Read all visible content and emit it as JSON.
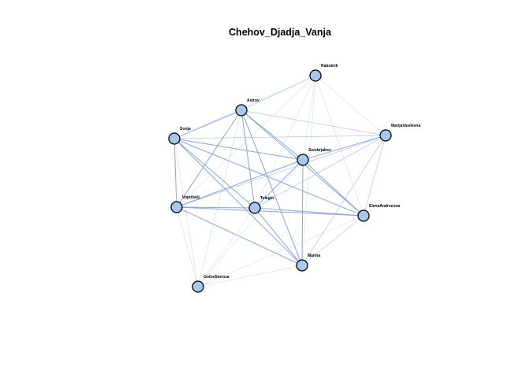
{
  "title": "Chehov_Djadja_Vanja",
  "nodes": [
    {
      "id": "rabotnik",
      "label": "Rabotnik"
    },
    {
      "id": "astrov",
      "label": "Astrov"
    },
    {
      "id": "sonja",
      "label": "Sonja"
    },
    {
      "id": "marija",
      "label": "MarijaVasilevna"
    },
    {
      "id": "serebrjakov",
      "label": "Serebrjakov"
    },
    {
      "id": "vojnitskij",
      "label": "Vojnitskij"
    },
    {
      "id": "telegin",
      "label": "Telegin"
    },
    {
      "id": "elena",
      "label": "ElenaAndreevna"
    },
    {
      "id": "marina",
      "label": "Marina"
    },
    {
      "id": "golos",
      "label": "GolosStoroza"
    }
  ],
  "edges": [
    {
      "source": "astrov",
      "target": "sonja",
      "weight": 3
    },
    {
      "source": "astrov",
      "target": "vojnitskij",
      "weight": 3
    },
    {
      "source": "astrov",
      "target": "telegin",
      "weight": 3
    },
    {
      "source": "astrov",
      "target": "serebrjakov",
      "weight": 3
    },
    {
      "source": "astrov",
      "target": "elena",
      "weight": 3
    },
    {
      "source": "astrov",
      "target": "marina",
      "weight": 3
    },
    {
      "source": "astrov",
      "target": "marija",
      "weight": 2
    },
    {
      "source": "astrov",
      "target": "rabotnik",
      "weight": 2
    },
    {
      "source": "astrov",
      "target": "golos",
      "weight": 1
    },
    {
      "source": "sonja",
      "target": "vojnitskij",
      "weight": 3
    },
    {
      "source": "sonja",
      "target": "telegin",
      "weight": 3
    },
    {
      "source": "sonja",
      "target": "serebrjakov",
      "weight": 3
    },
    {
      "source": "sonja",
      "target": "elena",
      "weight": 3
    },
    {
      "source": "sonja",
      "target": "marina",
      "weight": 3
    },
    {
      "source": "sonja",
      "target": "marija",
      "weight": 2
    },
    {
      "source": "sonja",
      "target": "rabotnik",
      "weight": 1
    },
    {
      "source": "sonja",
      "target": "golos",
      "weight": 1
    },
    {
      "source": "vojnitskij",
      "target": "telegin",
      "weight": 3
    },
    {
      "source": "vojnitskij",
      "target": "serebrjakov",
      "weight": 3
    },
    {
      "source": "vojnitskij",
      "target": "elena",
      "weight": 3
    },
    {
      "source": "vojnitskij",
      "target": "marina",
      "weight": 3
    },
    {
      "source": "vojnitskij",
      "target": "marija",
      "weight": 2
    },
    {
      "source": "vojnitskij",
      "target": "rabotnik",
      "weight": 1
    },
    {
      "source": "vojnitskij",
      "target": "golos",
      "weight": 1
    },
    {
      "source": "telegin",
      "target": "serebrjakov",
      "weight": 3
    },
    {
      "source": "telegin",
      "target": "elena",
      "weight": 3
    },
    {
      "source": "telegin",
      "target": "marina",
      "weight": 3
    },
    {
      "source": "telegin",
      "target": "marija",
      "weight": 2
    },
    {
      "source": "telegin",
      "target": "rabotnik",
      "weight": 1
    },
    {
      "source": "telegin",
      "target": "golos",
      "weight": 1
    },
    {
      "source": "serebrjakov",
      "target": "elena",
      "weight": 3
    },
    {
      "source": "serebrjakov",
      "target": "marina",
      "weight": 3
    },
    {
      "source": "serebrjakov",
      "target": "marija",
      "weight": 3
    },
    {
      "source": "serebrjakov",
      "target": "rabotnik",
      "weight": 1
    },
    {
      "source": "serebrjakov",
      "target": "golos",
      "weight": 1
    },
    {
      "source": "elena",
      "target": "marina",
      "weight": 2
    },
    {
      "source": "elena",
      "target": "marija",
      "weight": 2
    },
    {
      "source": "elena",
      "target": "rabotnik",
      "weight": 1
    },
    {
      "source": "elena",
      "target": "golos",
      "weight": 1
    },
    {
      "source": "marina",
      "target": "marija",
      "weight": 2
    },
    {
      "source": "marina",
      "target": "rabotnik",
      "weight": 1
    },
    {
      "source": "marina",
      "target": "golos",
      "weight": 1
    },
    {
      "source": "marija",
      "target": "rabotnik",
      "weight": 1
    }
  ],
  "colors": {
    "node_fill": "#a9c7ea",
    "node_stroke": "#000000",
    "edge_strong": "#7e9fd0",
    "edge_medium": "#9fb6dc",
    "edge_weak": "#c9d3e3",
    "background": "#ffffff"
  }
}
